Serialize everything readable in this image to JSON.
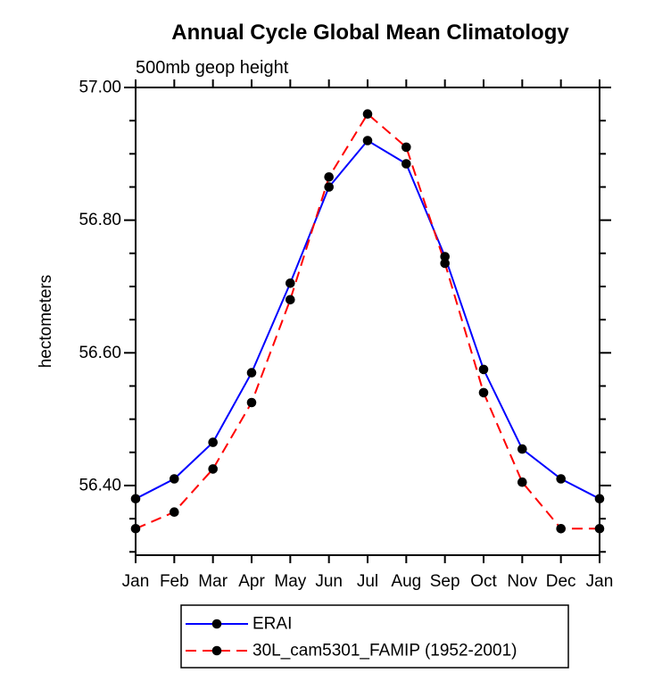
{
  "header": {
    "title": "Annual Cycle Global Mean Climatology",
    "subtitle": "500mb geop height"
  },
  "chart_data": {
    "type": "line",
    "title": "Annual Cycle Global Mean Climatology",
    "subtitle": "500mb geop height",
    "xlabel": "",
    "ylabel": "hectometers",
    "categories": [
      "Jan",
      "Feb",
      "Mar",
      "Apr",
      "May",
      "Jun",
      "Jul",
      "Aug",
      "Sep",
      "Oct",
      "Nov",
      "Dec",
      "Jan"
    ],
    "ylim": [
      56.295,
      57.0
    ],
    "y_major_tick_step": 0.2,
    "y_minor_tick_step": 0.05,
    "y_major_ticks": [
      57.0,
      56.8,
      56.6,
      56.4
    ],
    "y_tick_labels": [
      "57.00",
      "56.80",
      "56.60",
      "56.40"
    ],
    "grid": false,
    "legend_position": "bottom",
    "series": [
      {
        "name": "ERAI",
        "color": "#0000ff",
        "line_style": "solid",
        "marker": "circle",
        "marker_color": "#000000",
        "values": [
          56.38,
          56.41,
          56.465,
          56.57,
          56.705,
          56.85,
          56.92,
          56.885,
          56.745,
          56.575,
          56.455,
          56.41,
          56.38
        ]
      },
      {
        "name": "30L_cam5301_FAMIP (1952-2001)",
        "color": "#ff0000",
        "line_style": "dashed",
        "marker": "circle",
        "marker_color": "#000000",
        "values": [
          56.335,
          56.36,
          56.425,
          56.525,
          56.68,
          56.865,
          56.96,
          56.91,
          56.735,
          56.54,
          56.405,
          56.335,
          56.335
        ]
      }
    ],
    "colors": {
      "axis": "#000000",
      "background": "#ffffff"
    }
  }
}
